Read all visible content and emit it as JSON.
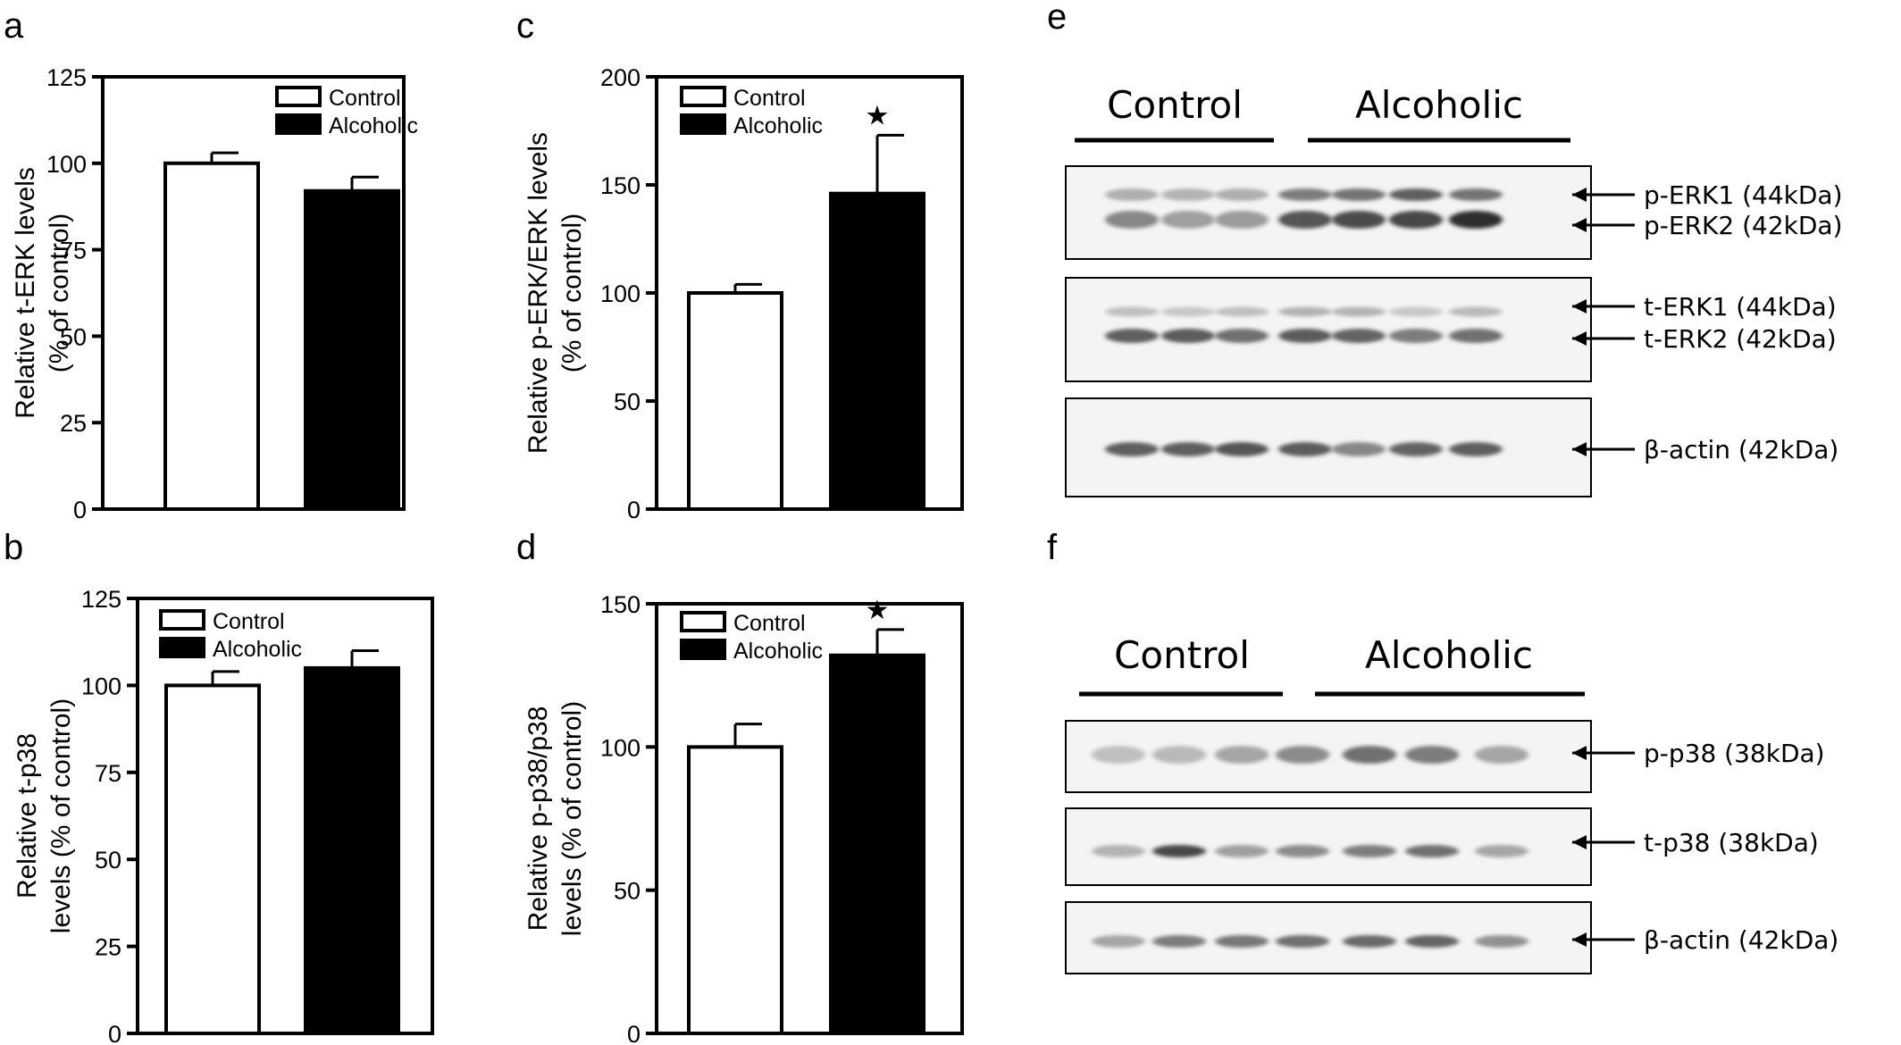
{
  "panel_letters": [
    "a",
    "b",
    "c",
    "d",
    "e",
    "f"
  ],
  "legend": {
    "control": "Control",
    "alcoholic": "Alcoholic"
  },
  "star_symbol": "★",
  "chart_data": [
    {
      "panel": "a",
      "type": "bar",
      "categories": [
        "Control",
        "Alcoholic"
      ],
      "values": [
        100,
        92
      ],
      "errors": [
        3,
        4
      ],
      "ylabel_lines": [
        "Relative t-ERK levels",
        "(% of control)"
      ],
      "ylim": [
        0,
        125
      ],
      "yticks": [
        0,
        25,
        50,
        75,
        100,
        125
      ],
      "significant": [
        false,
        false
      ],
      "legend": "top-right",
      "grid": false
    },
    {
      "panel": "b",
      "type": "bar",
      "categories": [
        "Control",
        "Alcoholic"
      ],
      "values": [
        100,
        105
      ],
      "errors": [
        4,
        5
      ],
      "ylabel_lines": [
        "Relative t-p38",
        "levels (% of control)"
      ],
      "ylim": [
        0,
        125
      ],
      "yticks": [
        0,
        25,
        50,
        75,
        100,
        125
      ],
      "significant": [
        false,
        false
      ],
      "legend": "top-left",
      "grid": false
    },
    {
      "panel": "c",
      "type": "bar",
      "categories": [
        "Control",
        "Alcoholic"
      ],
      "values": [
        100,
        146
      ],
      "errors": [
        4,
        27
      ],
      "ylabel_lines": [
        "Relative p-ERK/ERK levels",
        "(% of control)"
      ],
      "ylim": [
        0,
        200
      ],
      "yticks": [
        0,
        50,
        100,
        150,
        200
      ],
      "significant": [
        false,
        true
      ],
      "legend": "top-left",
      "grid": false
    },
    {
      "panel": "d",
      "type": "bar",
      "categories": [
        "Control",
        "Alcoholic"
      ],
      "values": [
        100,
        132
      ],
      "errors": [
        8,
        9
      ],
      "ylabel_lines": [
        "Relative p-p38/p38",
        "levels (% of control)"
      ],
      "ylim": [
        0,
        150
      ],
      "yticks": [
        0,
        50,
        100,
        150
      ],
      "significant": [
        false,
        true
      ],
      "legend": "top-left",
      "grid": false
    }
  ],
  "blots": {
    "e": {
      "group_labels": [
        "Control",
        "Alcoholic"
      ],
      "rows": [
        {
          "labels": [
            "p-ERK1 (44kDa)",
            "p-ERK2 (42kDa)"
          ],
          "bands": [
            [
              0.3,
              0.28,
              0.3,
              0.55,
              0.6,
              0.7,
              0.6
            ],
            [
              0.5,
              0.38,
              0.4,
              0.75,
              0.8,
              0.82,
              0.95
            ]
          ]
        },
        {
          "labels": [
            "t-ERK1 (44kDa)",
            "t-ERK2 (42kDa)"
          ],
          "bands": [
            [
              0.22,
              0.18,
              0.22,
              0.28,
              0.28,
              0.18,
              0.25
            ],
            [
              0.7,
              0.72,
              0.62,
              0.72,
              0.68,
              0.55,
              0.62
            ]
          ]
        },
        {
          "labels": [
            "β-actin (42kDa)"
          ],
          "bands": [
            [
              0.7,
              0.7,
              0.75,
              0.72,
              0.5,
              0.68,
              0.7
            ]
          ]
        }
      ]
    },
    "f": {
      "group_labels": [
        "Control",
        "Alcoholic"
      ],
      "rows": [
        {
          "labels": [
            "p-p38 (38kDa)"
          ],
          "bands": [
            [
              0.22,
              0.25,
              0.35,
              0.48,
              0.62,
              0.55,
              0.35
            ]
          ]
        },
        {
          "labels": [
            "t-p38 (38kDa)"
          ],
          "bands": [
            [
              0.28,
              0.82,
              0.38,
              0.48,
              0.55,
              0.62,
              0.35
            ]
          ]
        },
        {
          "labels": [
            "β-actin (42kDa)"
          ],
          "bands": [
            [
              0.35,
              0.55,
              0.58,
              0.62,
              0.65,
              0.68,
              0.45
            ]
          ]
        }
      ]
    }
  }
}
